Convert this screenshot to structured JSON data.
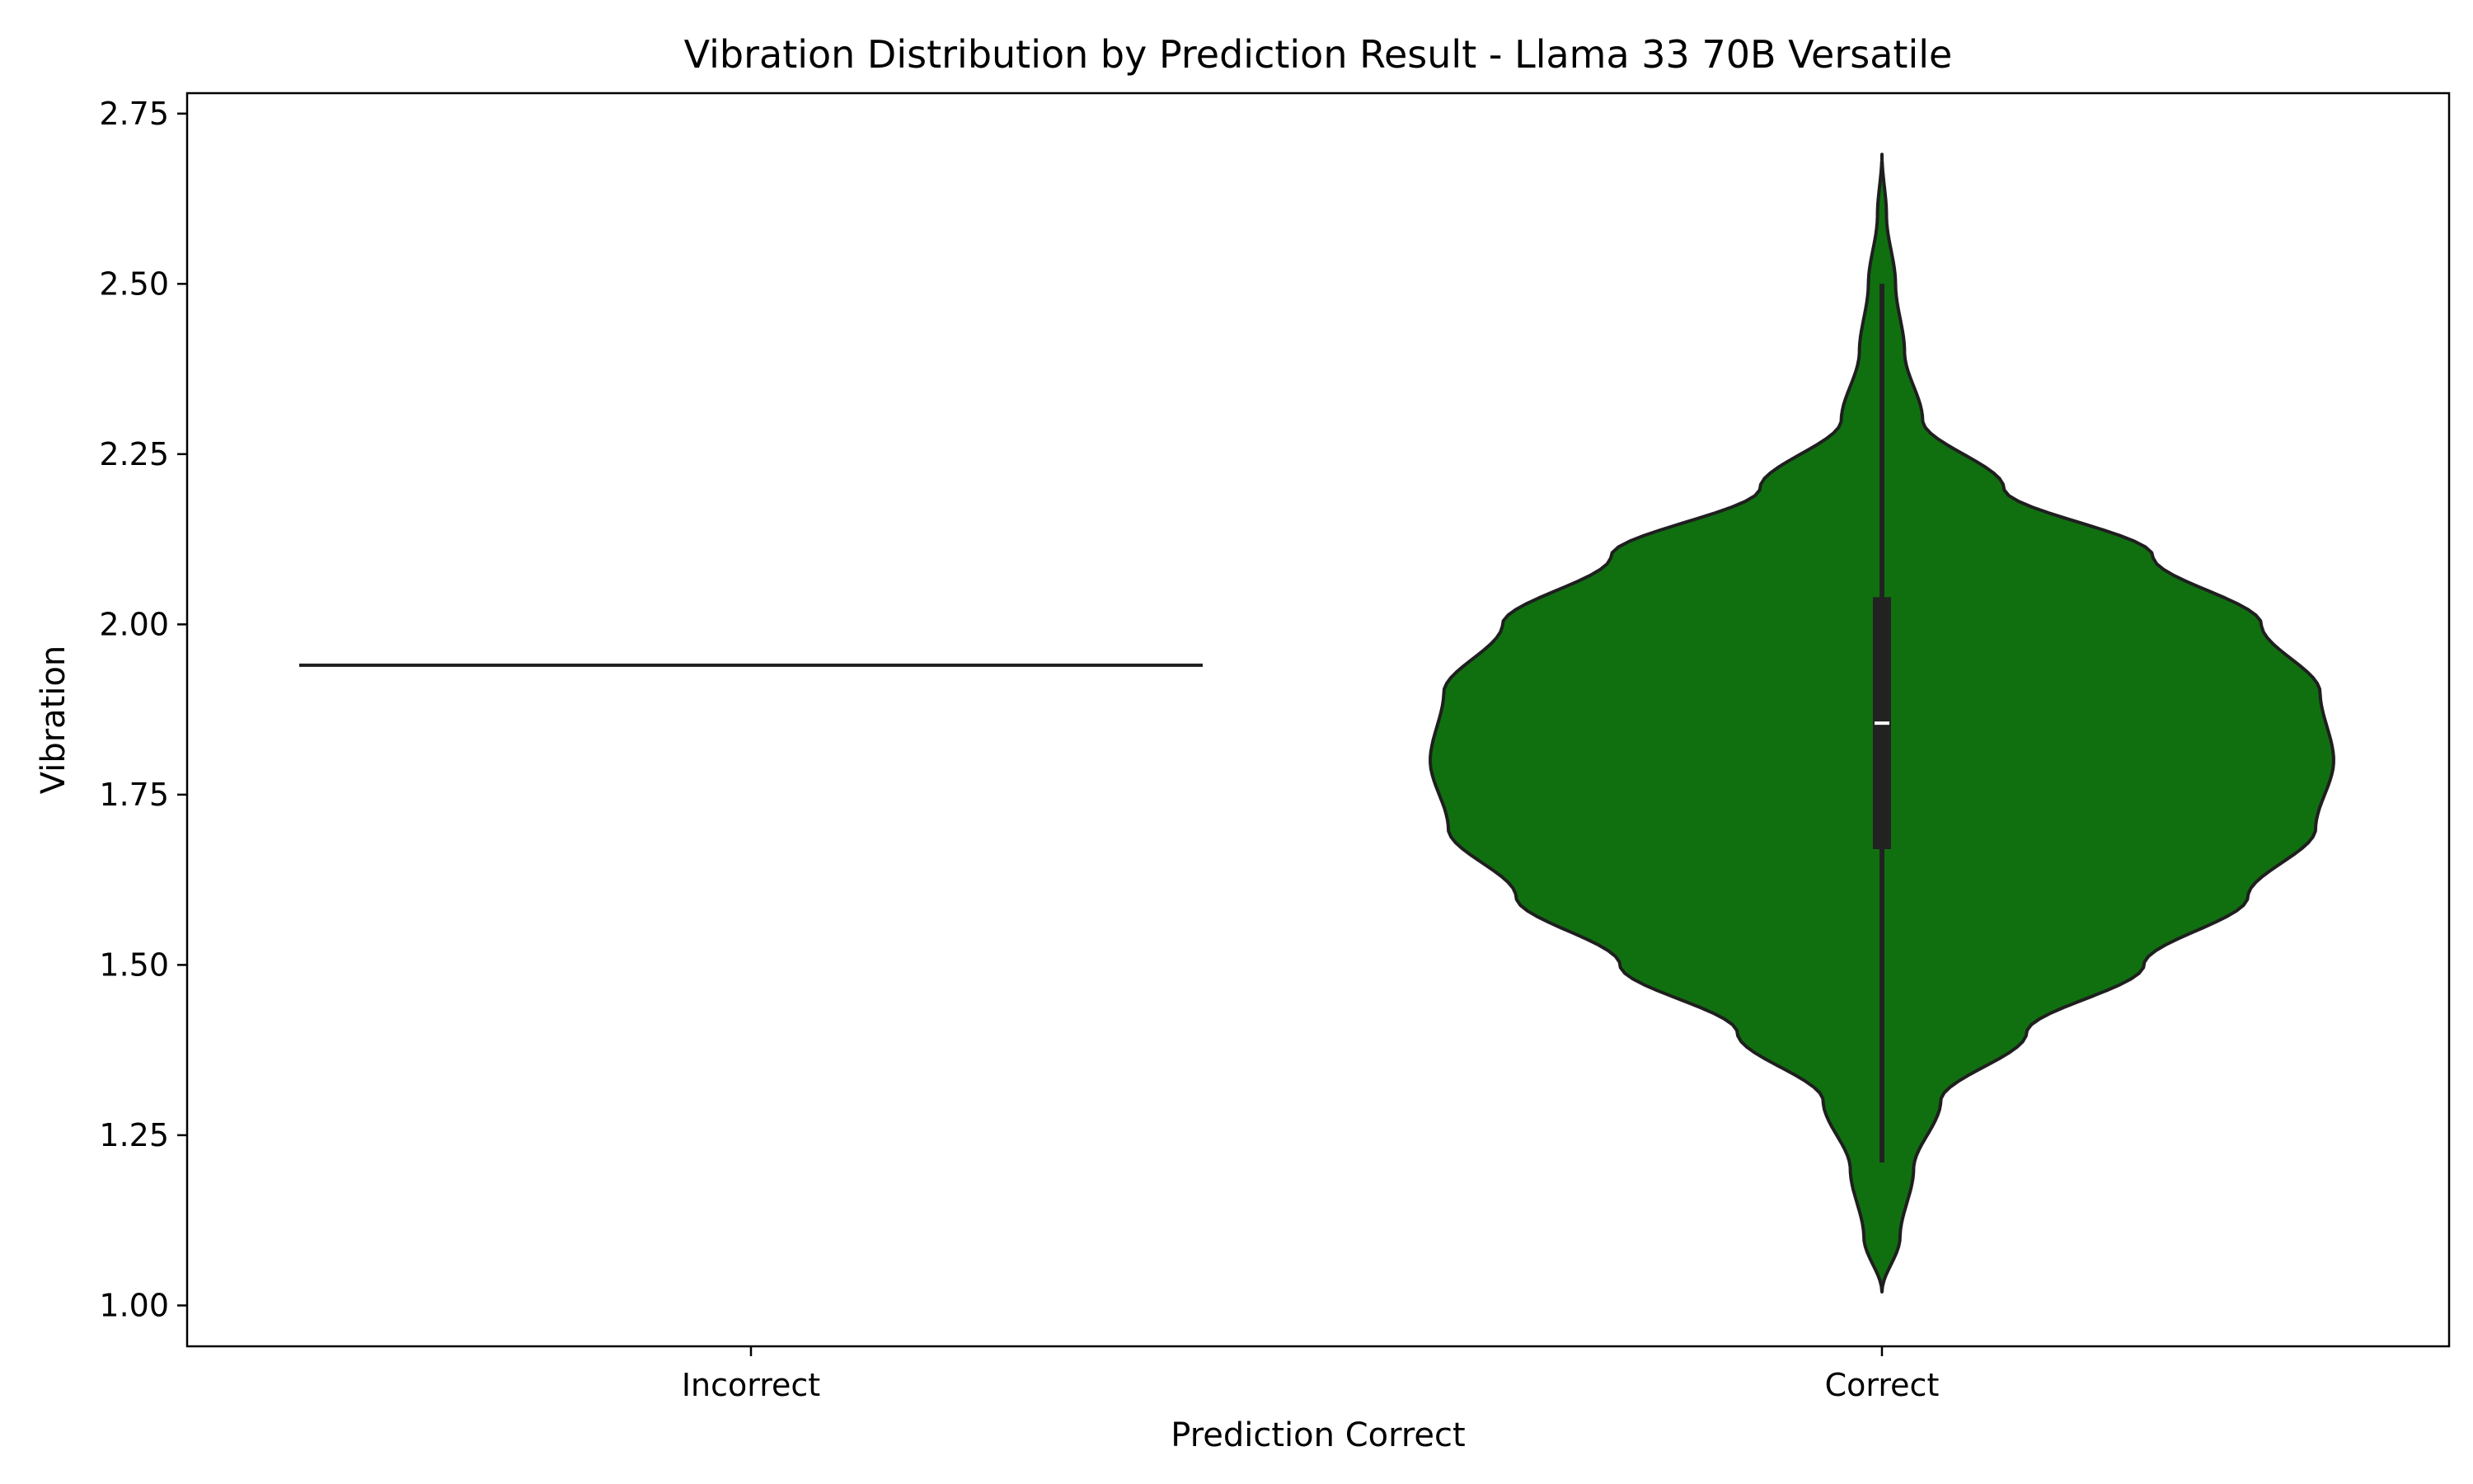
{
  "chart_data": {
    "type": "violin",
    "title": "Vibration Distribution by Prediction Result - Llama 33 70B Versatile",
    "xlabel": "Prediction Correct",
    "ylabel": "Vibration",
    "categories": [
      "Incorrect",
      "Correct"
    ],
    "ylim": [
      0.94,
      2.78
    ],
    "yticks": [
      1.0,
      1.25,
      1.5,
      1.75,
      2.0,
      2.25,
      2.5,
      2.75
    ],
    "ytick_labels": [
      "1.00",
      "1.25",
      "1.50",
      "1.75",
      "2.00",
      "2.25",
      "2.50",
      "2.75"
    ],
    "grid": false,
    "colors": {
      "violin_fill": "#107010",
      "outline": "#1f1f1f",
      "box": "#222222",
      "median": "#ffffff"
    },
    "violins": [
      {
        "category": "Incorrect",
        "single_value": 1.94,
        "min": 1.94,
        "max": 1.94
      },
      {
        "category": "Correct",
        "min": 1.21,
        "max": 2.5,
        "q1": 1.67,
        "median": 1.855,
        "q3": 2.04,
        "kde_min": 1.02,
        "kde_max": 2.69,
        "density_profile": [
          {
            "y": 1.02,
            "w": 0.0
          },
          {
            "y": 1.1,
            "w": 0.04
          },
          {
            "y": 1.2,
            "w": 0.07
          },
          {
            "y": 1.3,
            "w": 0.13
          },
          {
            "y": 1.4,
            "w": 0.32
          },
          {
            "y": 1.5,
            "w": 0.58
          },
          {
            "y": 1.6,
            "w": 0.81
          },
          {
            "y": 1.7,
            "w": 0.96
          },
          {
            "y": 1.8,
            "w": 1.0
          },
          {
            "y": 1.9,
            "w": 0.97
          },
          {
            "y": 2.0,
            "w": 0.84
          },
          {
            "y": 2.1,
            "w": 0.6
          },
          {
            "y": 2.2,
            "w": 0.27
          },
          {
            "y": 2.3,
            "w": 0.09
          },
          {
            "y": 2.4,
            "w": 0.05
          },
          {
            "y": 2.5,
            "w": 0.03
          },
          {
            "y": 2.6,
            "w": 0.01
          },
          {
            "y": 2.69,
            "w": 0.0
          }
        ]
      }
    ]
  }
}
